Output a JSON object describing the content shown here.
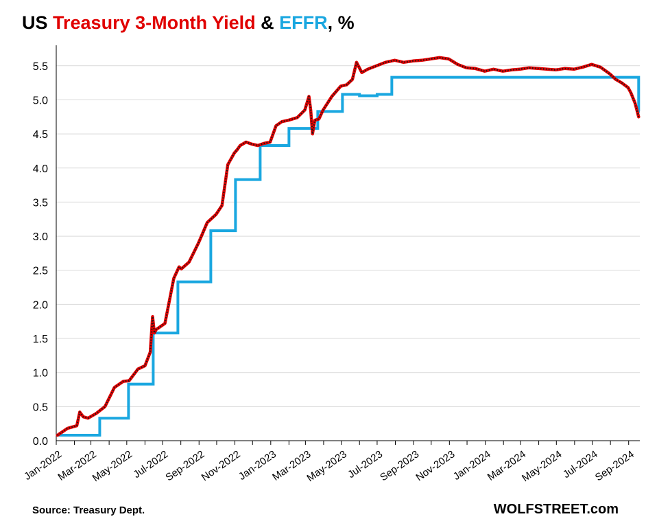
{
  "title": {
    "prefix": "US ",
    "series1": "Treasury 3-Month Yield",
    "joiner": " & ",
    "series2": "EFFR",
    "suffix": ", %"
  },
  "source": "Source: Treasury Dept.",
  "brand": "WOLFSTREET.com",
  "colors": {
    "yield": "#e00000",
    "yield_dots": "#1a1a1a",
    "effr": "#1aa7e0",
    "grid": "#d9d9d9",
    "axis": "#000000"
  },
  "chart_data": {
    "type": "line",
    "xlabel": "",
    "ylabel": "",
    "ylim": [
      0,
      5.8
    ],
    "xlim": [
      "2022-01-01",
      "2024-09-20"
    ],
    "yticks": [
      "0.0",
      "0.5",
      "1.0",
      "1.5",
      "2.0",
      "2.5",
      "3.0",
      "3.5",
      "4.0",
      "4.5",
      "5.0",
      "5.5"
    ],
    "xticks": [
      "Jan-2022",
      "Mar-2022",
      "May-2022",
      "Jul-2022",
      "Sep-2022",
      "Nov-2022",
      "Jan-2023",
      "Mar-2023",
      "May-2023",
      "Jul-2023",
      "Sep-2023",
      "Nov-2023",
      "Jan-2024",
      "Mar-2024",
      "May-2024",
      "Jul-2024",
      "Sep-2024"
    ],
    "grid": true,
    "series": [
      {
        "name": "Treasury 3-Month Yield",
        "x": [
          "2022-01-03",
          "2022-01-20",
          "2022-02-05",
          "2022-02-10",
          "2022-02-16",
          "2022-02-24",
          "2022-03-10",
          "2022-03-25",
          "2022-04-10",
          "2022-04-25",
          "2022-05-05",
          "2022-05-20",
          "2022-06-01",
          "2022-06-10",
          "2022-06-14",
          "2022-06-17",
          "2022-06-20",
          "2022-07-05",
          "2022-07-20",
          "2022-07-29",
          "2022-08-02",
          "2022-08-15",
          "2022-08-31",
          "2022-09-15",
          "2022-09-30",
          "2022-10-10",
          "2022-10-20",
          "2022-10-31",
          "2022-11-05",
          "2022-11-10",
          "2022-11-20",
          "2022-11-30",
          "2022-12-10",
          "2022-12-20",
          "2022-12-31",
          "2023-01-10",
          "2023-01-20",
          "2023-01-31",
          "2023-02-15",
          "2023-02-28",
          "2023-03-07",
          "2023-03-10",
          "2023-03-13",
          "2023-03-17",
          "2023-03-24",
          "2023-03-31",
          "2023-04-15",
          "2023-04-30",
          "2023-05-10",
          "2023-05-20",
          "2023-05-27",
          "2023-06-05",
          "2023-06-15",
          "2023-06-30",
          "2023-07-15",
          "2023-07-31",
          "2023-08-15",
          "2023-08-31",
          "2023-09-15",
          "2023-09-30",
          "2023-10-15",
          "2023-10-31",
          "2023-11-15",
          "2023-11-30",
          "2023-12-15",
          "2023-12-31",
          "2024-01-15",
          "2024-01-31",
          "2024-02-15",
          "2024-02-29",
          "2024-03-15",
          "2024-03-31",
          "2024-04-15",
          "2024-04-30",
          "2024-05-15",
          "2024-05-31",
          "2024-06-15",
          "2024-06-30",
          "2024-07-15",
          "2024-07-31",
          "2024-08-10",
          "2024-08-20",
          "2024-08-31",
          "2024-09-05",
          "2024-09-12",
          "2024-09-18"
        ],
        "values": [
          0.08,
          0.18,
          0.22,
          0.42,
          0.35,
          0.33,
          0.4,
          0.5,
          0.78,
          0.87,
          0.88,
          1.05,
          1.1,
          1.3,
          1.82,
          1.58,
          1.63,
          1.72,
          2.38,
          2.55,
          2.52,
          2.62,
          2.9,
          3.2,
          3.32,
          3.45,
          4.05,
          4.22,
          4.27,
          4.33,
          4.38,
          4.35,
          4.33,
          4.36,
          4.38,
          4.62,
          4.68,
          4.7,
          4.74,
          4.85,
          5.05,
          4.85,
          4.5,
          4.7,
          4.72,
          4.85,
          5.05,
          5.2,
          5.22,
          5.3,
          5.55,
          5.4,
          5.45,
          5.5,
          5.55,
          5.58,
          5.55,
          5.57,
          5.58,
          5.6,
          5.62,
          5.6,
          5.52,
          5.47,
          5.46,
          5.42,
          5.45,
          5.42,
          5.44,
          5.45,
          5.47,
          5.46,
          5.45,
          5.44,
          5.46,
          5.45,
          5.48,
          5.52,
          5.48,
          5.38,
          5.3,
          5.25,
          5.18,
          5.1,
          4.95,
          4.75
        ]
      },
      {
        "name": "EFFR",
        "x": [
          "2022-01-01",
          "2022-03-16",
          "2022-05-04",
          "2022-06-15",
          "2022-07-27",
          "2022-09-21",
          "2022-11-02",
          "2022-12-14",
          "2023-02-01",
          "2023-03-22",
          "2023-05-03",
          "2023-06-01",
          "2023-07-01",
          "2023-07-26",
          "2024-09-18",
          "2024-09-20"
        ],
        "values": [
          0.08,
          0.33,
          0.83,
          1.58,
          2.33,
          3.08,
          3.83,
          4.33,
          4.58,
          4.83,
          5.08,
          5.06,
          5.08,
          5.33,
          4.83,
          4.83
        ]
      }
    ]
  }
}
